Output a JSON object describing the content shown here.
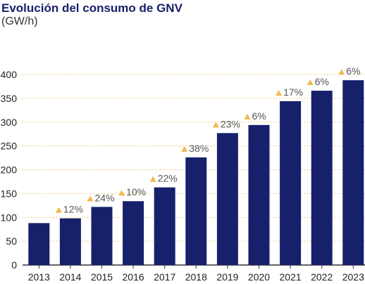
{
  "chart_data": {
    "type": "bar",
    "title": "Evolución del consumo de GNV",
    "subtitle": "(GW/h)",
    "categories": [
      "2013",
      "2014",
      "2015",
      "2016",
      "2017",
      "2018",
      "2019",
      "2020",
      "2021",
      "2022",
      "2023"
    ],
    "values": [
      88,
      98,
      122,
      134,
      163,
      226,
      277,
      294,
      344,
      366,
      388
    ],
    "growth_labels": [
      "",
      "12%",
      "24%",
      "10%",
      "22%",
      "38%",
      "23%",
      "6%",
      "17%",
      "6%",
      "6%"
    ],
    "growth_marker": "triangle-up-icon",
    "yticks": [
      "0",
      "50",
      "100",
      "150",
      "200",
      "250",
      "300",
      "350",
      "400"
    ],
    "ylim": [
      0,
      400
    ],
    "grid": true,
    "colors": {
      "bar": "#17206b",
      "marker": "#f2b84a",
      "grid": "#e0a020",
      "axis": "#333333"
    }
  }
}
